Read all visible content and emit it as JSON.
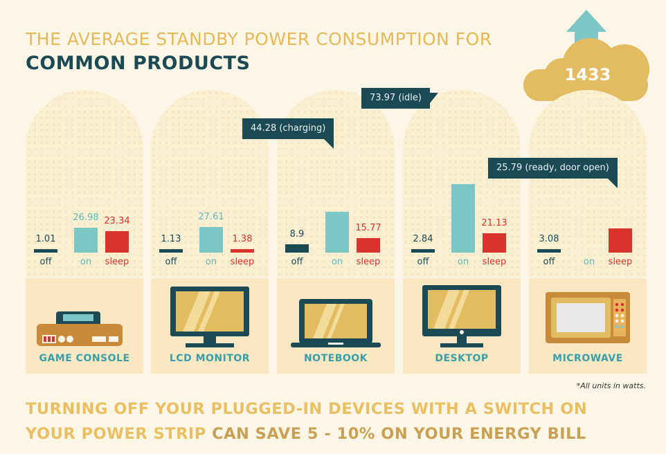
{
  "title_line1": "THE AVERAGE STANDBY POWER CONSUMPTION FOR",
  "title_line2": "COMMON PRODUCTS",
  "note": "*All units in watts.",
  "footer_line1": "TURNING OFF YOUR PLUGGED-IN DEVICES WITH A SWITCH ON",
  "footer_line2_a": "YOUR POWER STRIP ",
  "footer_line2_b": "CAN SAVE 5 - 10% ON YOUR ENERGY BILL",
  "cloud_value": "1433",
  "colors": {
    "off": "#1b4a55",
    "on": "#7cc6c6",
    "sleep": "#d9332e",
    "title_gold": "#e5b95a",
    "accent_teal": "#3a9ea8",
    "background": "#fdf6e7"
  },
  "chart_data": {
    "type": "bar",
    "title": "THE AVERAGE STANDBY POWER CONSUMPTION FOR COMMON PRODUCTS",
    "categories": [
      "off",
      "on",
      "sleep"
    ],
    "products": [
      {
        "name": "GAME CONSOLE",
        "icon": "game-console-icon",
        "values": [
          1.01,
          26.98,
          23.34
        ],
        "labels": [
          "1.01",
          "26.98",
          "23.34"
        ],
        "callout": null
      },
      {
        "name": "LCD MONITOR",
        "icon": "lcd-monitor-icon",
        "values": [
          1.13,
          27.61,
          1.38
        ],
        "labels": [
          "1.13",
          "27.61",
          "1.38"
        ],
        "callout": null
      },
      {
        "name": "NOTEBOOK",
        "icon": "notebook-icon",
        "values": [
          8.9,
          44.28,
          15.77
        ],
        "labels": [
          "8.9",
          "",
          "15.77"
        ],
        "callout": "44.28 (charging)",
        "callout_index": 1
      },
      {
        "name": "DESKTOP",
        "icon": "desktop-icon",
        "values": [
          2.84,
          73.97,
          21.13
        ],
        "labels": [
          "2.84",
          "",
          "21.13"
        ],
        "callout": "73.97 (idle)",
        "callout_index": 1
      },
      {
        "name": "MICROWAVE",
        "icon": "microwave-icon",
        "values": [
          3.08,
          1433,
          25.79
        ],
        "labels": [
          "3.08",
          "",
          ""
        ],
        "callout": "25.79 (ready, door open)",
        "callout_index": 2
      }
    ],
    "units": "watts",
    "note": "*All units in watts."
  }
}
